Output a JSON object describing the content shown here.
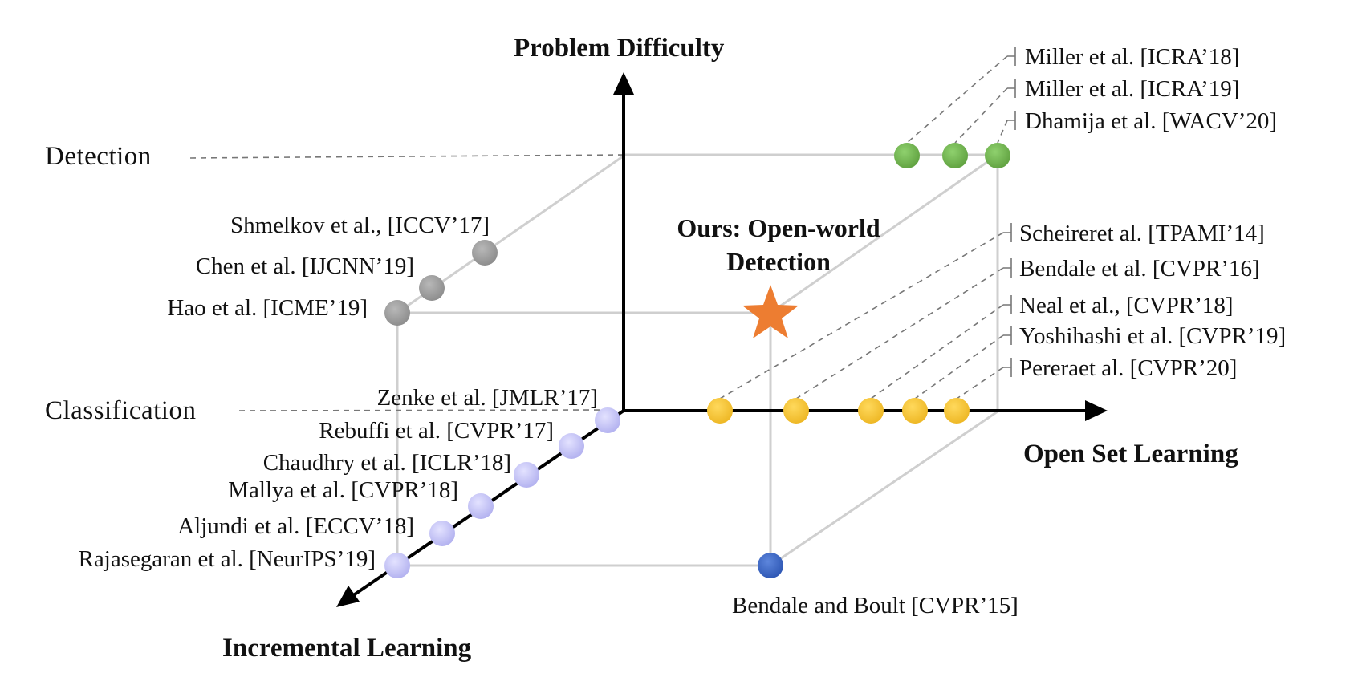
{
  "axes": {
    "vertical": "Problem Difficulty",
    "horizontal": "Open Set Learning",
    "depth": "Incremental Learning"
  },
  "levels": {
    "top": "Detection",
    "bottom": "Classification"
  },
  "ours": {
    "line1": "Ours: Open-world",
    "line2": "Detection"
  },
  "detection_open_set": [
    "Miller et al. [ICRA’18]",
    "Miller et al. [ICRA’19]",
    "Dhamija et al. [WACV’20]"
  ],
  "classification_open_set": [
    "Scheireret al. [TPAMI’14]",
    "Bendale et al. [CVPR’16]",
    "Neal et al., [CVPR’18]",
    "Yoshihashi et al. [CVPR’19]",
    "Pereraet al. [CVPR’20]"
  ],
  "detection_incremental": [
    "Shmelkov et al., [ICCV’17]",
    "Chen et al. [IJCNN’19]",
    "Hao et al. [ICME’19]"
  ],
  "classification_incremental": [
    "Zenke et al. [JMLR’17]",
    "Rebuffi et al. [CVPR’17]",
    "Chaudhry et al. [ICLR’18]",
    "Mallya et al. [CVPR’18]",
    "Aljundi et al. [ECCV’18]",
    "Rajasegaran et al. [NeurIPS’19]"
  ],
  "open_set_incremental": "Bendale and Boult [CVPR’15]",
  "colors": {
    "detection_open_set": "#6aa84f",
    "classification_open_set": "#f1c232",
    "detection_incremental": "#999999",
    "classification_incremental": "#c9c9f5",
    "open_set_incremental": "#3c66c4",
    "ours": "#ed7d31"
  }
}
